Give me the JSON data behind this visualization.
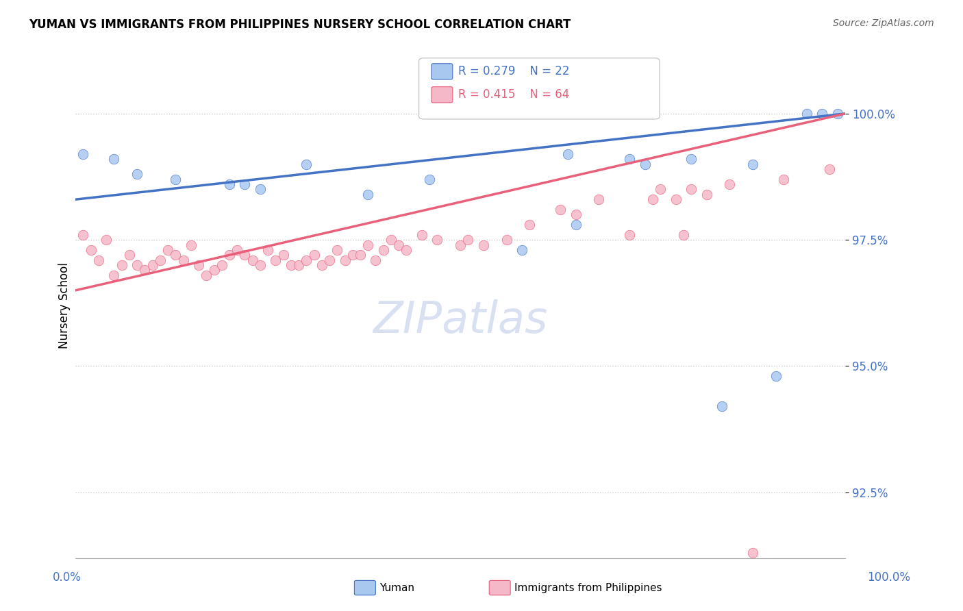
{
  "title": "YUMAN VS IMMIGRANTS FROM PHILIPPINES NURSERY SCHOOL CORRELATION CHART",
  "source": "Source: ZipAtlas.com",
  "ylabel": "Nursery School",
  "yticks": [
    92.5,
    95.0,
    97.5,
    100.0
  ],
  "ymin": 91.2,
  "ymax": 101.2,
  "xmin": 0.0,
  "xmax": 100.0,
  "legend_r_blue": "R = 0.279",
  "legend_n_blue": "N = 22",
  "legend_r_pink": "R = 0.415",
  "legend_n_pink": "N = 64",
  "blue_color": "#A8C8F0",
  "pink_color": "#F5B8C8",
  "blue_line_color": "#4472C4",
  "pink_line_color": "#E8607A",
  "watermark_color": "#C8D4EC",
  "blue_scatter_x": [
    1,
    5,
    8,
    13,
    20,
    22,
    24,
    30,
    38,
    46,
    58,
    64,
    65,
    72,
    74,
    80,
    84,
    88,
    91,
    95,
    97,
    99
  ],
  "blue_scatter_y": [
    99.2,
    99.1,
    98.8,
    98.7,
    98.6,
    98.6,
    98.5,
    99.0,
    98.4,
    98.7,
    97.3,
    99.2,
    97.8,
    99.1,
    99.0,
    99.1,
    94.2,
    99.0,
    94.8,
    100.0,
    100.0,
    100.0
  ],
  "pink_scatter_x": [
    1,
    2,
    3,
    4,
    5,
    6,
    7,
    8,
    9,
    10,
    11,
    12,
    13,
    14,
    15,
    16,
    17,
    18,
    19,
    20,
    21,
    22,
    23,
    24,
    25,
    26,
    27,
    28,
    29,
    30,
    31,
    32,
    33,
    34,
    35,
    36,
    37,
    38,
    39,
    40,
    41,
    42,
    43,
    45,
    47,
    50,
    51,
    53,
    56,
    59,
    63,
    65,
    68,
    72,
    75,
    76,
    78,
    79,
    80,
    82,
    85,
    88,
    92,
    98
  ],
  "pink_scatter_y": [
    97.6,
    97.3,
    97.1,
    97.5,
    96.8,
    97.0,
    97.2,
    97.0,
    96.9,
    97.0,
    97.1,
    97.3,
    97.2,
    97.1,
    97.4,
    97.0,
    96.8,
    96.9,
    97.0,
    97.2,
    97.3,
    97.2,
    97.1,
    97.0,
    97.3,
    97.1,
    97.2,
    97.0,
    97.0,
    97.1,
    97.2,
    97.0,
    97.1,
    97.3,
    97.1,
    97.2,
    97.2,
    97.4,
    97.1,
    97.3,
    97.5,
    97.4,
    97.3,
    97.6,
    97.5,
    97.4,
    97.5,
    97.4,
    97.5,
    97.8,
    98.1,
    98.0,
    98.3,
    97.6,
    98.3,
    98.5,
    98.3,
    97.6,
    98.5,
    98.4,
    98.6,
    91.3,
    98.7,
    98.9
  ],
  "blue_line_x0": 0,
  "blue_line_x1": 100,
  "blue_line_y0": 98.3,
  "blue_line_y1": 100.0,
  "pink_line_x0": 0,
  "pink_line_x1": 100,
  "pink_line_y0": 96.5,
  "pink_line_y1": 100.0
}
